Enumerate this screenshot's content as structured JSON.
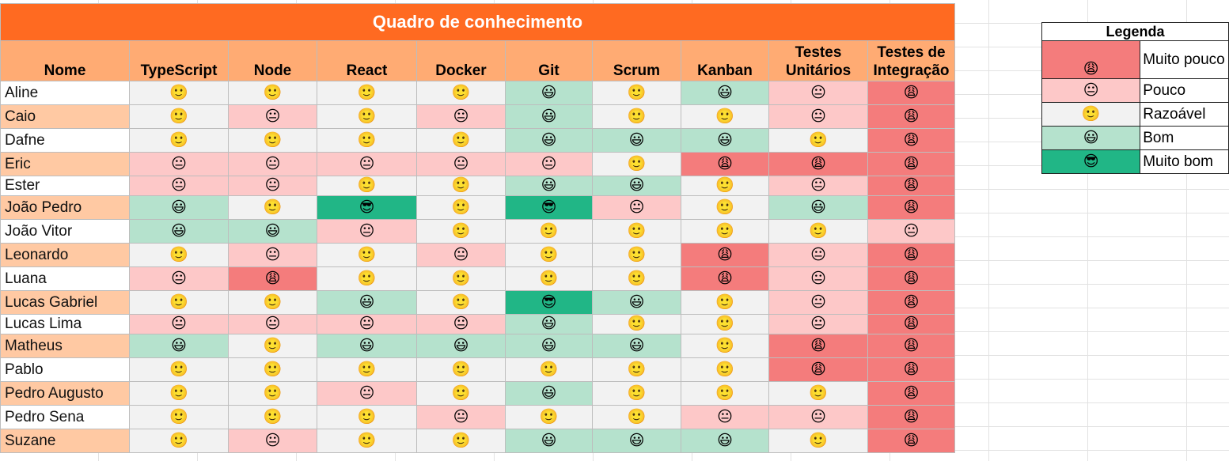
{
  "sheet": {
    "title": "Quadro de conhecimento",
    "name_header": "Nome",
    "columns": [
      "TypeScript",
      "Node",
      "React",
      "Docker",
      "Git",
      "Scrum",
      "Kanban",
      "Testes Unitários",
      "Testes de Integração"
    ],
    "levels": {
      "1": {
        "emoji": "😩",
        "color": "#f47c7c"
      },
      "2": {
        "emoji": "😐",
        "color": "#fdc8c8"
      },
      "3": {
        "emoji": "🙂",
        "color": "#f2f2f2"
      },
      "4": {
        "emoji": "😃",
        "color": "#b5e2cd"
      },
      "5": {
        "emoji": "😎",
        "color": "#21b686"
      }
    },
    "rows": [
      {
        "name": "Aline",
        "levels": [
          3,
          3,
          3,
          3,
          4,
          3,
          4,
          2,
          1
        ]
      },
      {
        "name": "Caio",
        "levels": [
          3,
          2,
          3,
          2,
          4,
          3,
          3,
          2,
          1
        ]
      },
      {
        "name": "Dafne",
        "levels": [
          3,
          3,
          3,
          3,
          4,
          4,
          4,
          3,
          1
        ]
      },
      {
        "name": "Eric",
        "levels": [
          2,
          2,
          2,
          2,
          2,
          3,
          1,
          1,
          1
        ]
      },
      {
        "name": "Ester",
        "levels": [
          2,
          2,
          3,
          3,
          4,
          4,
          3,
          2,
          1
        ]
      },
      {
        "name": "João Pedro",
        "levels": [
          4,
          3,
          5,
          3,
          5,
          2,
          3,
          4,
          1
        ]
      },
      {
        "name": "João Vitor",
        "levels": [
          4,
          4,
          2,
          3,
          3,
          3,
          3,
          3,
          2
        ]
      },
      {
        "name": "Leonardo",
        "levels": [
          3,
          2,
          3,
          2,
          3,
          3,
          1,
          2,
          1
        ]
      },
      {
        "name": "Luana",
        "levels": [
          2,
          1,
          3,
          3,
          3,
          3,
          1,
          2,
          1
        ]
      },
      {
        "name": "Lucas Gabriel",
        "levels": [
          3,
          3,
          4,
          3,
          5,
          4,
          3,
          2,
          1
        ]
      },
      {
        "name": "Lucas Lima",
        "levels": [
          2,
          2,
          2,
          2,
          4,
          3,
          3,
          2,
          1
        ]
      },
      {
        "name": "Matheus",
        "levels": [
          4,
          3,
          4,
          4,
          4,
          4,
          3,
          1,
          1
        ]
      },
      {
        "name": "Pablo",
        "levels": [
          3,
          3,
          3,
          3,
          3,
          3,
          3,
          1,
          1
        ]
      },
      {
        "name": "Pedro Augusto",
        "levels": [
          3,
          3,
          2,
          3,
          4,
          3,
          3,
          3,
          1
        ]
      },
      {
        "name": "Pedro Sena",
        "levels": [
          3,
          3,
          3,
          2,
          3,
          3,
          2,
          2,
          1
        ]
      },
      {
        "name": "Suzane",
        "levels": [
          3,
          2,
          3,
          3,
          4,
          4,
          4,
          3,
          1
        ]
      }
    ]
  },
  "legend": {
    "title": "Legenda",
    "items": [
      {
        "level": 1,
        "label": "Muito pouco"
      },
      {
        "level": 2,
        "label": "Pouco"
      },
      {
        "level": 3,
        "label": "Razoável"
      },
      {
        "level": 4,
        "label": "Bom"
      },
      {
        "level": 5,
        "label": "Muito bom"
      }
    ]
  }
}
